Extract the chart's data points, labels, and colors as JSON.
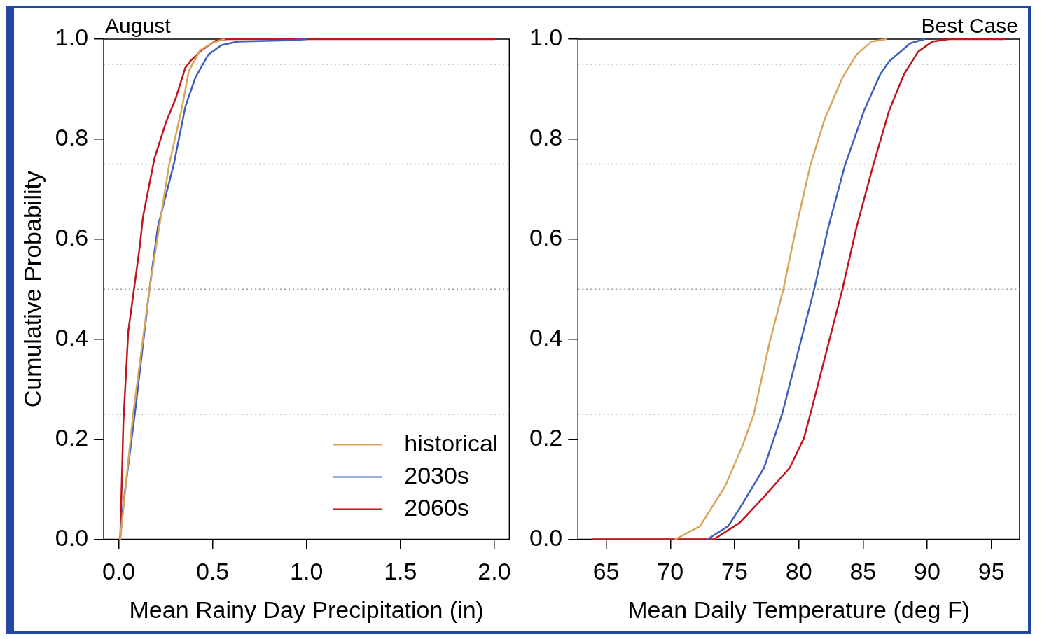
{
  "chart_data": [
    {
      "type": "line",
      "title": "August",
      "xlabel": "Mean Rainy Day Precipitation (in)",
      "ylabel": "Cumulative Probability",
      "xlim": [
        -0.08,
        2.08
      ],
      "ylim": [
        0,
        1
      ],
      "xticks": [
        {
          "value": 0,
          "label": "0.0"
        },
        {
          "value": 0.5,
          "label": "0.5"
        },
        {
          "value": 1,
          "label": "1.0"
        },
        {
          "value": 1.5,
          "label": "1.5"
        },
        {
          "value": 2,
          "label": "2.0"
        }
      ],
      "yticks": [
        {
          "value": 0,
          "label": "0.0"
        },
        {
          "value": 0.2,
          "label": "0.2"
        },
        {
          "value": 0.4,
          "label": "0.4"
        },
        {
          "value": 0.6,
          "label": "0.6"
        },
        {
          "value": 0.8,
          "label": "0.8"
        },
        {
          "value": 1,
          "label": "1.0"
        }
      ],
      "grid": false,
      "legend": "bottom right",
      "marker": "none",
      "line_style": "solid",
      "ref_lines": [
        {
          "axis": "y",
          "value": 0.25,
          "color": "#999999",
          "line_style": "dotted"
        },
        {
          "axis": "y",
          "value": 0.5,
          "color": "#999999",
          "line_style": "dotted"
        },
        {
          "axis": "y",
          "value": 0.75,
          "color": "#999999",
          "line_style": "dotted"
        },
        {
          "axis": "y",
          "value": 0.95,
          "color": "#999999",
          "line_style": "dotted"
        }
      ],
      "series": [
        {
          "name": "historical",
          "color": "#d9a55b",
          "x": [
            0.008,
            0.077,
            0.164,
            0.243,
            0.268,
            0.338,
            0.373,
            0.434,
            0.495,
            0.56
          ],
          "values": [
            0,
            0.251,
            0.501,
            0.689,
            0.748,
            0.865,
            0.936,
            0.978,
            0.992,
            1
          ]
        },
        {
          "name": "2030s",
          "color": "#3a5fbf",
          "x": [
            0.008,
            0.025,
            0.086,
            0.164,
            0.208,
            0.294,
            0.355,
            0.408,
            0.477,
            0.547,
            0.633,
            0.93,
            1.0
          ],
          "values": [
            0,
            0.072,
            0.251,
            0.501,
            0.624,
            0.751,
            0.865,
            0.923,
            0.969,
            0.988,
            0.995,
            0.998,
            1
          ]
        },
        {
          "name": "2060s",
          "color": "#c0161b",
          "x": [
            0.008,
            0.025,
            0.051,
            0.112,
            0.129,
            0.19,
            0.25,
            0.303,
            0.355,
            0.381,
            0.442,
            0.52,
            0.58,
            2.0
          ],
          "values": [
            0,
            0.235,
            0.416,
            0.585,
            0.644,
            0.761,
            0.832,
            0.881,
            0.943,
            0.956,
            0.978,
            0.998,
            1,
            1
          ]
        }
      ]
    },
    {
      "type": "line",
      "title": "Best Case",
      "xlabel": "Mean Daily Temperature (deg F)",
      "xlim": [
        62.8,
        97.2
      ],
      "ylim": [
        0,
        1
      ],
      "xticks": [
        65,
        70,
        75,
        80,
        85,
        90,
        95
      ],
      "yticks": [
        {
          "value": 0,
          "label": "0.0"
        },
        {
          "value": 0.2,
          "label": "0.2"
        },
        {
          "value": 0.4,
          "label": "0.4"
        },
        {
          "value": 0.6,
          "label": "0.6"
        },
        {
          "value": 0.8,
          "label": "0.8"
        },
        {
          "value": 1,
          "label": "1.0"
        }
      ],
      "grid": false,
      "marker": "none",
      "line_style": "solid",
      "ref_lines": [
        {
          "axis": "y",
          "value": 0.25,
          "color": "#999999",
          "line_style": "dotted"
        },
        {
          "axis": "y",
          "value": 0.5,
          "color": "#999999",
          "line_style": "dotted"
        },
        {
          "axis": "y",
          "value": 0.75,
          "color": "#999999",
          "line_style": "dotted"
        },
        {
          "axis": "y",
          "value": 0.95,
          "color": "#999999",
          "line_style": "dotted"
        }
      ],
      "series": [
        {
          "color": "#d9a55b",
          "x": [
            70.4,
            72.3,
            74.25,
            75.65,
            76.5,
            77.7,
            78.8,
            79.8,
            80.9,
            82.0,
            83.4,
            84.5,
            85.65,
            86.8
          ],
          "values": [
            0,
            0.026,
            0.105,
            0.189,
            0.25,
            0.39,
            0.5,
            0.624,
            0.748,
            0.839,
            0.923,
            0.969,
            0.995,
            1
          ]
        },
        {
          "color": "#3a5fbf",
          "x": [
            72.9,
            74.5,
            75.65,
            77.3,
            78.7,
            80.1,
            81.2,
            82.3,
            83.6,
            85.1,
            86.35,
            87.05,
            88.7,
            89.8
          ],
          "values": [
            0,
            0.026,
            0.072,
            0.143,
            0.25,
            0.39,
            0.5,
            0.624,
            0.748,
            0.858,
            0.93,
            0.956,
            0.992,
            1
          ]
        },
        {
          "color": "#c0161b",
          "x": [
            64,
            73.4,
            75.4,
            77.3,
            79.3,
            80.4,
            80.9,
            82.3,
            83.4,
            84.5,
            85.8,
            87.05,
            88.2,
            89.3,
            90.4,
            91.7,
            96
          ],
          "values": [
            0,
            0,
            0.033,
            0.085,
            0.143,
            0.202,
            0.25,
            0.39,
            0.5,
            0.624,
            0.748,
            0.858,
            0.93,
            0.975,
            0.995,
            1,
            1
          ]
        }
      ]
    }
  ]
}
